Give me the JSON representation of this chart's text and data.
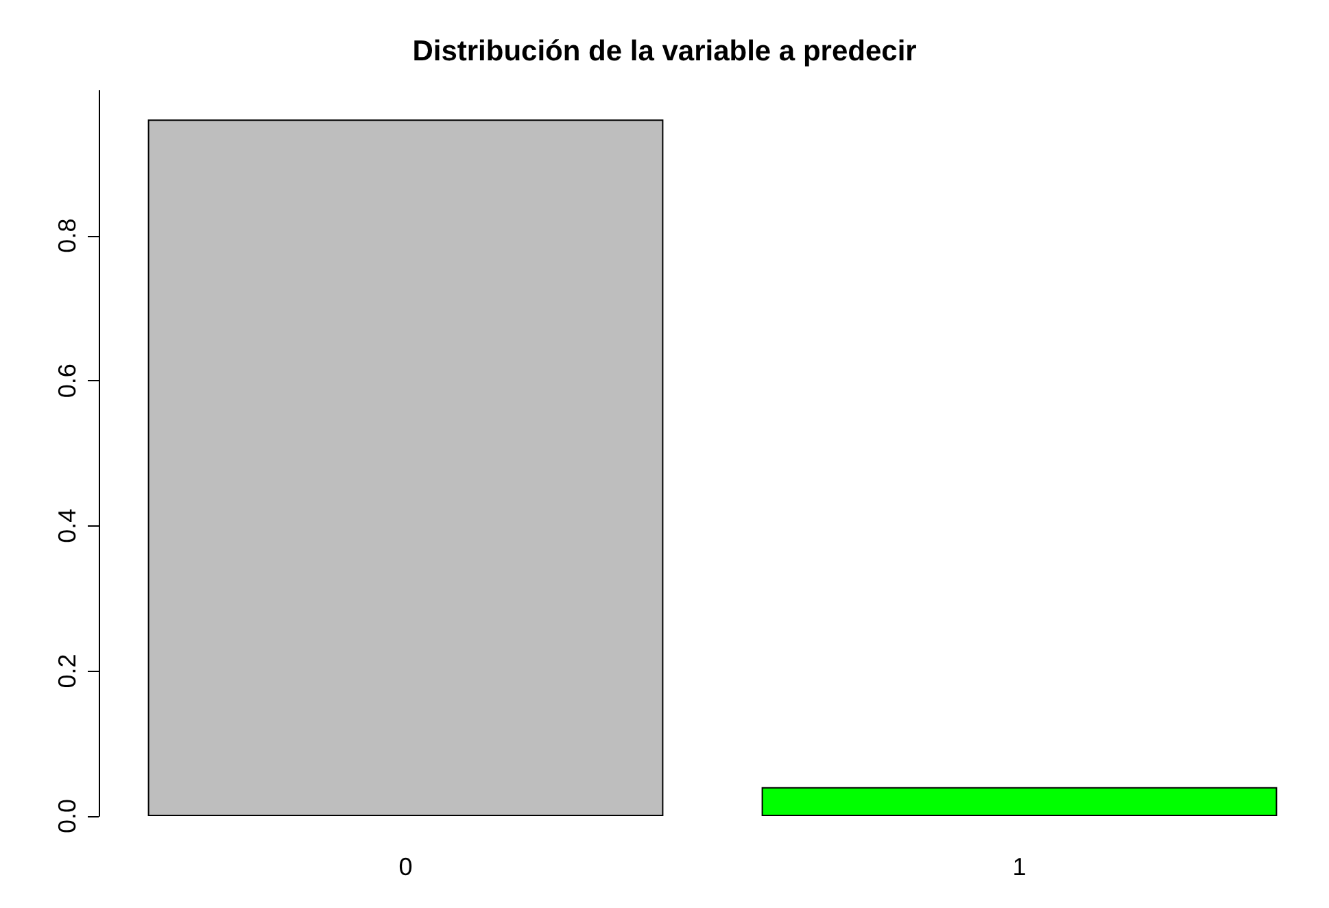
{
  "chart_data": {
    "type": "bar",
    "title": "Distribución de la variable a predecir",
    "categories": [
      "0",
      "1"
    ],
    "values": [
      0.96,
      0.04
    ],
    "colors": [
      "#bebebe",
      "#00ff00"
    ],
    "ylim": [
      0,
      1
    ],
    "yticks": [
      {
        "value": 0,
        "label": "0.0"
      },
      {
        "value": 0.2,
        "label": "0.2"
      },
      {
        "value": 0.4,
        "label": "0.4"
      },
      {
        "value": 0.6,
        "label": "0.6"
      },
      {
        "value": 0.8,
        "label": "0.8"
      }
    ],
    "grid": false
  }
}
